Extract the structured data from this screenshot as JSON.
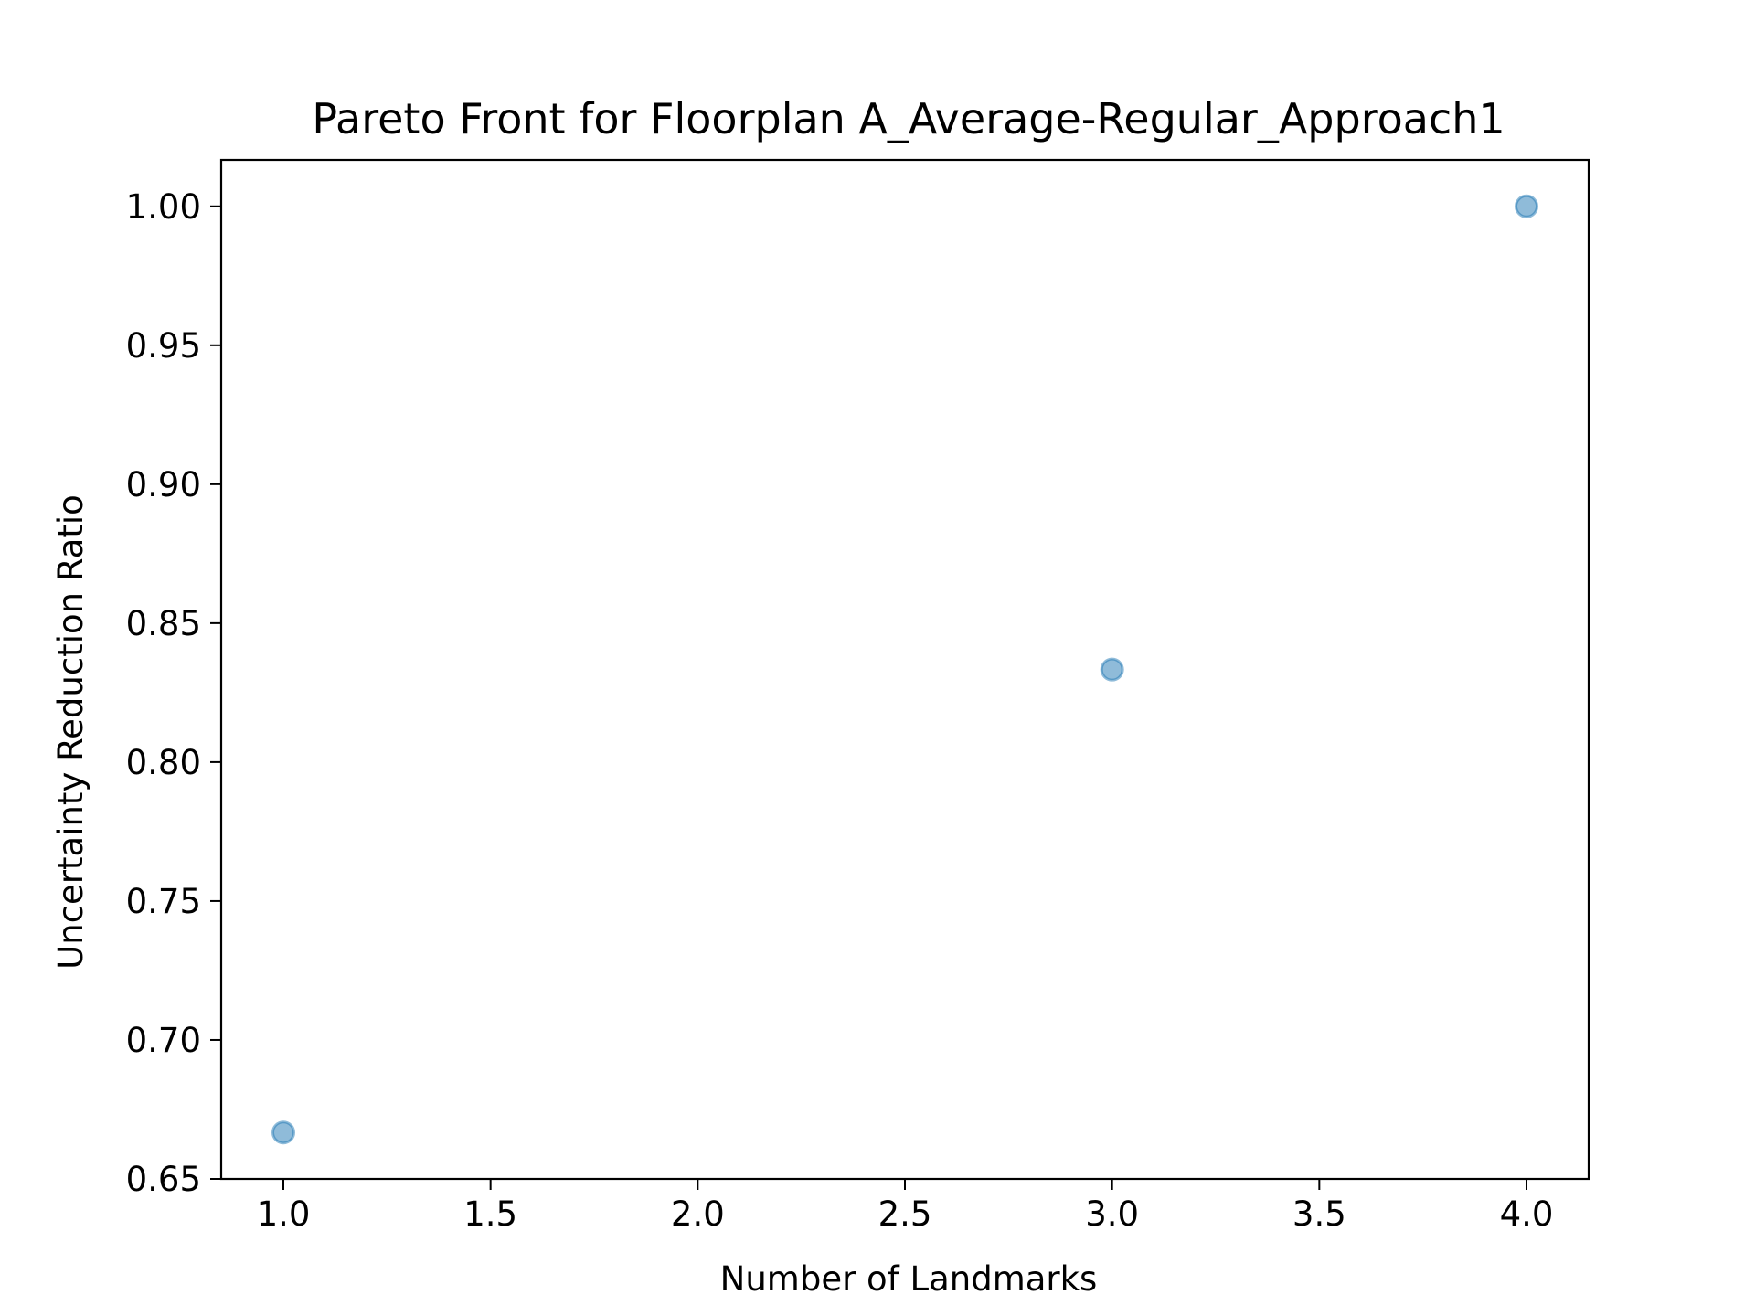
{
  "chart_data": {
    "type": "scatter",
    "title": "Pareto Front for Floorplan A_Average-Regular_Approach1",
    "xlabel": "Number of Landmarks",
    "ylabel": "Uncertainty Reduction Ratio",
    "xlim": [
      0.85,
      4.15
    ],
    "ylim": [
      0.65,
      1.0167
    ],
    "xticks": [
      1.0,
      1.5,
      2.0,
      2.5,
      3.0,
      3.5,
      4.0
    ],
    "xtick_labels": [
      "1.0",
      "1.5",
      "2.0",
      "2.5",
      "3.0",
      "3.5",
      "4.0"
    ],
    "yticks": [
      0.65,
      0.7,
      0.75,
      0.8,
      0.85,
      0.9,
      0.95,
      1.0
    ],
    "ytick_labels": [
      "0.65",
      "0.70",
      "0.75",
      "0.80",
      "0.85",
      "0.90",
      "0.95",
      "1.00"
    ],
    "grid": false,
    "series": [
      {
        "color": "#1f77b4",
        "alpha": 0.5,
        "points": [
          {
            "x": 1,
            "y": 0.6667
          },
          {
            "x": 3,
            "y": 0.8333
          },
          {
            "x": 4,
            "y": 1.0
          }
        ]
      }
    ]
  }
}
